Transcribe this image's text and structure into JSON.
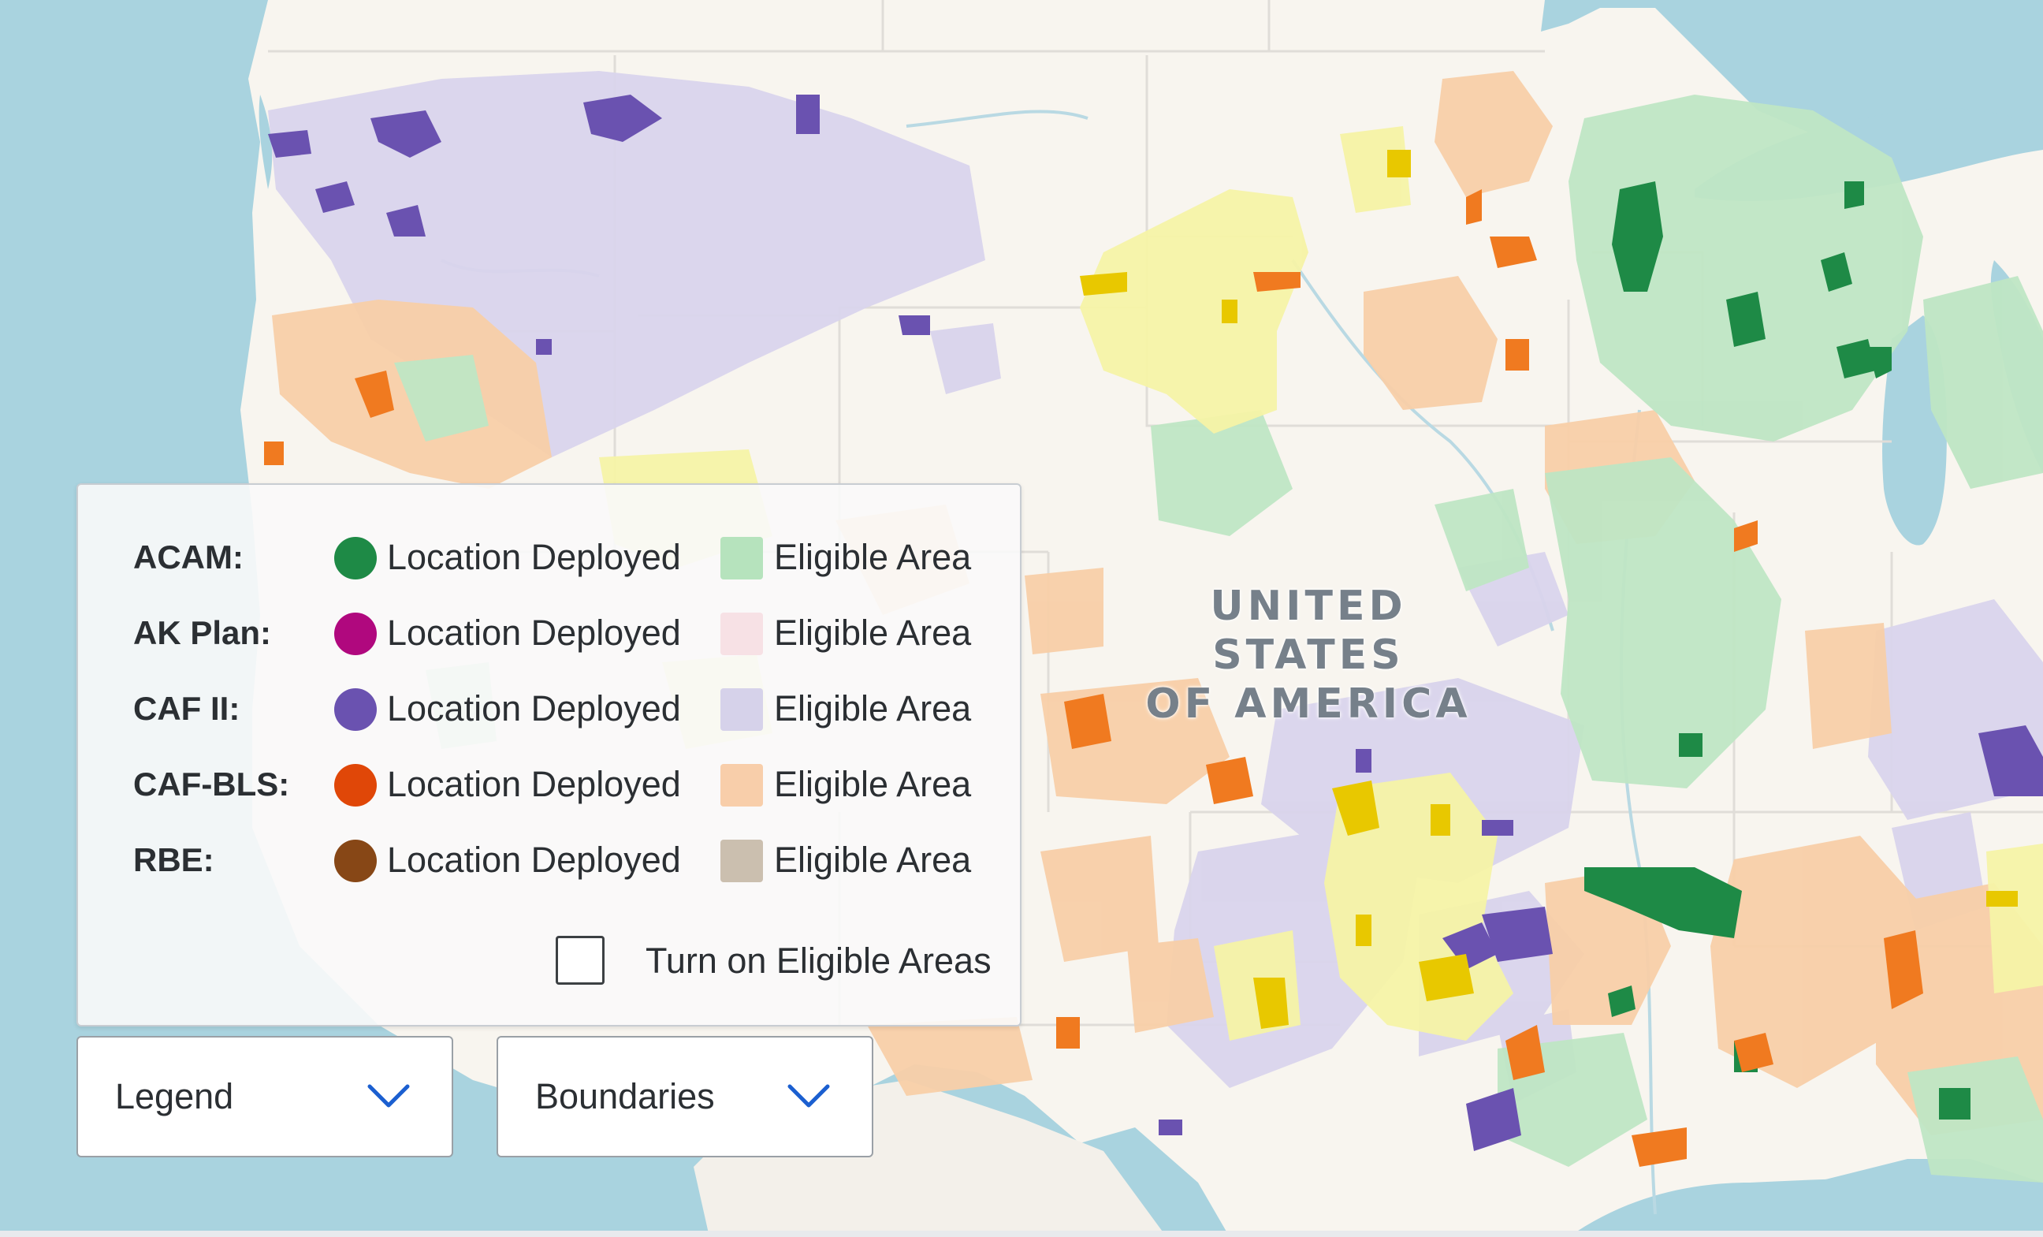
{
  "map": {
    "country_label_line1": "UNITED STATES",
    "country_label_line2": "OF AMERICA"
  },
  "legend": {
    "rows": [
      {
        "program": "ACAM:",
        "deployed_label": "Location Deployed",
        "deployed_color": "#1e8a46",
        "eligible_label": "Eligible Area",
        "eligible_color": "#b6e3bd"
      },
      {
        "program": "AK Plan:",
        "deployed_label": "Location Deployed",
        "deployed_color": "#b0087e",
        "eligible_label": "Eligible Area",
        "eligible_color": "#f7e1e5"
      },
      {
        "program": "CAF II:",
        "deployed_label": "Location Deployed",
        "deployed_color": "#6a52b0",
        "eligible_label": "Eligible Area",
        "eligible_color": "#d6d2ea"
      },
      {
        "program": "CAF-BLS:",
        "deployed_label": "Location Deployed",
        "deployed_color": "#e04708",
        "eligible_label": "Eligible Area",
        "eligible_color": "#f8ceaa"
      },
      {
        "program": "RBE:",
        "deployed_label": "Location Deployed",
        "deployed_color": "#874716",
        "eligible_label": "Eligible Area",
        "eligible_color": "#cbbfaf"
      }
    ],
    "toggle_label": "Turn on Eligible Areas",
    "toggle_checked": false
  },
  "controls": {
    "legend_dropdown": "Legend",
    "boundaries_dropdown": "Boundaries",
    "chevron_color": "#1b5fd0"
  },
  "colors": {
    "water": "#a9d3df",
    "land": "#f8f5ef",
    "yellow_eligible": "#f5f2a0",
    "yellow_deployed": "#e8c800"
  }
}
